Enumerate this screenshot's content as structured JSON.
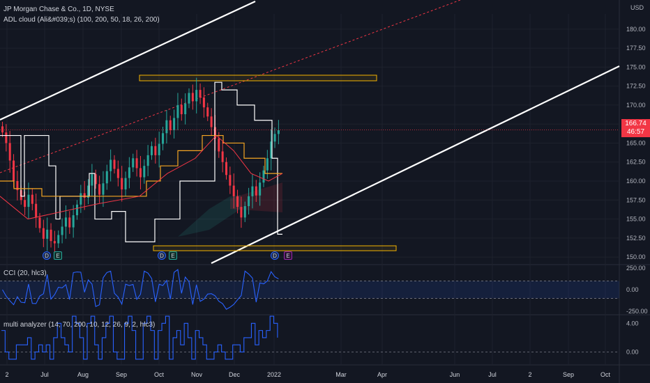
{
  "header": {
    "symbol_line": "JP Morgan Chase & Co., 1D, NYSE",
    "indicator_1": "ADL cloud (Ali&#039;s) (100, 200, 50, 18, 26, 200)",
    "indicator_2": "CCI (20, hlc3)",
    "indicator_3": "multi analyzer (14, 70, 200, 10, 12, 26, 9, 2, hlc3)"
  },
  "currency": "USD",
  "last_price": {
    "value": "166.74",
    "countdown": "46:57",
    "color": "#f23645"
  },
  "colors": {
    "up": "#26a69a",
    "down": "#f23645",
    "background": "#131722",
    "accent": "#2962ff",
    "box": "#f5b300"
  },
  "events": [
    "D",
    "E",
    "D",
    "E",
    "D",
    "E"
  ],
  "chart_data": [
    {
      "type": "candlestick",
      "title": "JP Morgan Chase & Co., 1D, NYSE",
      "y_ticks": [
        "150.00",
        "152.50",
        "155.00",
        "157.50",
        "160.00",
        "162.50",
        "165.00",
        "167.50",
        "170.00",
        "172.50",
        "175.00",
        "177.50",
        "180.00"
      ],
      "ylim": [
        149,
        182
      ],
      "x_ticks": [
        "2",
        "Jul",
        "Aug",
        "Sep",
        "Oct",
        "Nov",
        "Dec",
        "2022",
        "Mar",
        "Apr",
        "Jun",
        "Jul",
        "2",
        "Sep",
        "Oct"
      ],
      "closes": [
        166.4,
        165.0,
        162.7,
        160.0,
        158.8,
        157.5,
        156.6,
        158.2,
        157.0,
        155.2,
        153.8,
        152.4,
        153.6,
        152.1,
        151.8,
        152.9,
        154.0,
        155.2,
        153.9,
        155.5,
        156.9,
        158.4,
        157.8,
        159.4,
        160.9,
        159.6,
        158.2,
        159.7,
        161.3,
        162.8,
        161.6,
        160.4,
        158.9,
        160.4,
        161.8,
        163.0,
        161.7,
        160.5,
        162.0,
        163.4,
        164.6,
        163.4,
        164.9,
        166.3,
        168.0,
        166.7,
        168.3,
        170.0,
        168.8,
        170.2,
        171.6,
        170.5,
        172.0,
        171.0,
        169.7,
        168.5,
        167.1,
        165.6,
        163.9,
        162.5,
        160.8,
        159.4,
        158.0,
        156.6,
        155.2,
        156.7,
        158.0,
        159.3,
        158.1,
        159.8,
        161.4,
        163.0,
        165.2,
        166.2,
        166.7
      ],
      "cci": {
        "name": "CCI (20, hlc3)",
        "y_ticks": [
          "250.00",
          "0.00",
          "-250.00"
        ],
        "ylim": [
          -290,
          290
        ]
      },
      "multi_analyzer": {
        "name": "multi analyzer (14, 70, 200, 10, 12, 26, 9, 2, hlc3)",
        "y_ticks": [
          "4.00",
          "0.00"
        ],
        "ylim": [
          -1.8,
          5.2
        ]
      }
    }
  ]
}
